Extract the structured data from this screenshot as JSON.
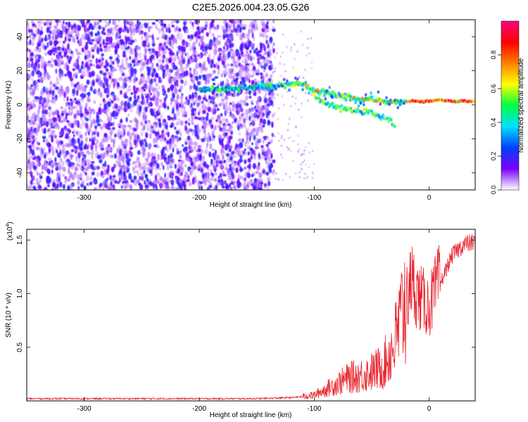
{
  "title": "C2E5.2026.004.23.05.G26",
  "chart_data": [
    {
      "type": "heatmap",
      "title": "C2E5.2026.004.23.05.G26",
      "xlabel": "Height of straight line (km)",
      "ylabel": "Frequency (Hz)",
      "xlim": [
        -350,
        40
      ],
      "ylim": [
        -50,
        50
      ],
      "xticks": [
        -300,
        -200,
        -100,
        0
      ],
      "yticks": [
        -40,
        -20,
        0,
        20,
        40
      ],
      "colorbar": {
        "label": "Normalized spectral amplitude",
        "range": [
          0,
          1
        ],
        "ticks": [
          0.0,
          0.2,
          0.4,
          0.6,
          0.8
        ],
        "tick_labels": [
          "0.0",
          "0.2",
          "0.4",
          "0.6",
          "0.8"
        ],
        "colors": [
          "#ffffff",
          "#7a00ff",
          "#0040ff",
          "#00e0ff",
          "#00ff40",
          "#ffff00",
          "#ff8000",
          "#ff0000",
          "#ff0080"
        ]
      },
      "ridge_main": {
        "height_km": [
          -200,
          -180,
          -160,
          -140,
          -120,
          -110,
          -100,
          -90,
          -80,
          -70,
          -60,
          -50,
          -40,
          -30,
          -20,
          -10,
          0,
          10,
          20,
          30,
          40
        ],
        "frequency_hz": [
          9,
          9,
          10,
          11,
          12,
          12,
          9,
          7,
          5,
          4,
          3,
          3,
          2,
          2,
          2,
          2,
          2,
          3,
          2,
          2,
          2
        ]
      },
      "ridge_lower": {
        "height_km": [
          -100,
          -90,
          -80,
          -70,
          -60,
          -50,
          -40,
          -30
        ],
        "frequency_hz": [
          5,
          1,
          -1,
          -3,
          -4,
          -5,
          -7,
          -12
        ]
      },
      "noise_region_km": [
        -350,
        -135
      ]
    },
    {
      "type": "line",
      "title": "",
      "xlabel": "Height of straight line (km)",
      "ylabel": "SNR (10 * v/v)",
      "multiplier_prefix": "(x10",
      "multiplier_exp": "4",
      "multiplier_suffix": ")",
      "xlim": [
        -350,
        40
      ],
      "ylim": [
        0,
        1.6
      ],
      "xticks": [
        -300,
        -200,
        -100,
        0
      ],
      "yticks": [
        0.5,
        1.0,
        1.5
      ],
      "ytick_labels": [
        "0.5",
        "1.0",
        "1.5"
      ],
      "series": [
        {
          "name": "SNR",
          "color": "#e8222c",
          "x": [
            -350,
            -300,
            -250,
            -200,
            -150,
            -120,
            -100,
            -90,
            -80,
            -70,
            -60,
            -50,
            -40,
            -30,
            -20,
            -15,
            -10,
            0,
            10,
            20,
            30,
            40
          ],
          "y": [
            0.02,
            0.02,
            0.02,
            0.02,
            0.02,
            0.03,
            0.05,
            0.1,
            0.15,
            0.2,
            0.22,
            0.25,
            0.3,
            0.5,
            0.9,
            1.1,
            0.95,
            0.85,
            1.1,
            1.35,
            1.45,
            1.47
          ]
        }
      ]
    }
  ]
}
